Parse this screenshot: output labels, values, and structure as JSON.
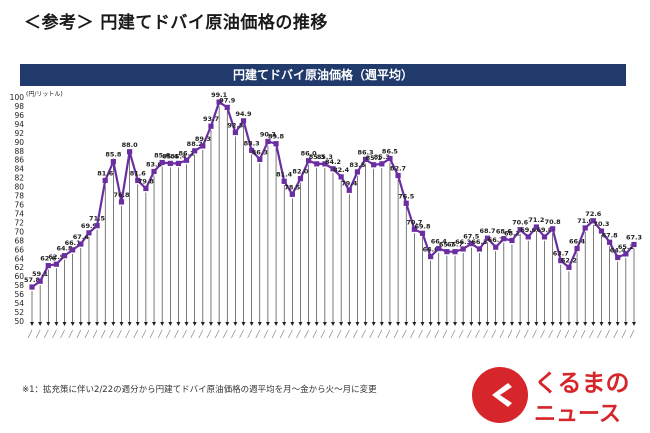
{
  "page": {
    "title": "＜参考＞ 円建てドバイ原油価格の推移",
    "footnote": "※1：拡充策に伴い2/22の週分から円建てドバイ原油価格の週平均を月～金から火～月に変更",
    "logo_top": "くるまの",
    "logo_bottom": "ニュース",
    "colors": {
      "banner": "#1f3a6b",
      "series": "#6a2ea0",
      "arrow": "#222222",
      "logo": "#d7262b"
    }
  },
  "chart_data": {
    "type": "line",
    "title": "円建てドバイ原油価格（週平均）",
    "ylabel": "(円/リットル)",
    "ylim": [
      50,
      100
    ],
    "y_ticks": [
      50,
      52,
      54,
      56,
      58,
      60,
      62,
      64,
      66,
      68,
      70,
      72,
      74,
      76,
      78,
      80,
      82,
      84,
      86,
      88,
      90,
      92,
      94,
      96,
      98,
      100
    ],
    "grid": false,
    "series": [
      {
        "values": [
          57.8,
          59.1,
          62.6,
          62.9,
          64.8,
          66.1,
          67.4,
          69.9,
          71.5,
          81.6,
          85.8,
          76.8,
          88.0,
          81.6,
          79.8,
          83.6,
          85.6,
          85.4,
          85.4,
          86.1,
          88.2,
          89.3,
          93.7,
          99.1,
          97.9,
          92.3,
          94.9,
          88.3,
          86.3,
          90.3,
          89.8,
          81.4,
          78.5,
          82.0,
          86.0,
          85.3,
          85.3,
          84.2,
          82.4,
          79.4,
          83.5,
          86.3,
          85.1,
          85.3,
          86.5,
          82.7,
          76.5,
          70.7,
          69.8,
          64.6,
          66.4,
          65.7,
          65.7,
          66.3,
          67.5,
          66.3,
          68.7,
          66.7,
          68.6,
          68.2,
          70.6,
          69.0,
          71.2,
          69.0,
          70.8,
          63.7,
          62.2,
          66.4,
          71.0,
          72.6,
          70.3,
          67.8,
          64.4,
          65.2,
          67.3
        ],
        "labels": [
          "57.8",
          "59.1",
          "62.6",
          "62.9",
          "64.8",
          "66.1",
          "67.4",
          "69.9",
          "71.5",
          "81.6",
          "85.8",
          "76.8",
          "88.0",
          "81.6",
          "79.8",
          "83.6",
          "85.6",
          "85.4",
          "85.4",
          "86.1",
          "88.2",
          "89.3",
          "93.7",
          "99.1",
          "97.9",
          "92.3",
          "94.9",
          "88.3",
          "86.3",
          "90.3",
          "89.8",
          "81.4",
          "78.5",
          "82.0",
          "86.0",
          "85.3",
          "85.3",
          "84.2",
          "82.4",
          "79.4",
          "83.5",
          "86.3",
          "85.1",
          "85.3",
          "86.5",
          "82.7",
          "76.5",
          "70.7",
          "69.8",
          "64.6",
          "66.4",
          "65.7",
          "65.7",
          "66.3",
          "67.5",
          "66.3",
          "68.7",
          "66.7",
          "68.6",
          "68.2",
          "70.6",
          "69.0",
          "71.2",
          "69.0",
          "70.8",
          "63.7",
          "62.2",
          "66.4",
          "71.0",
          "72.6",
          "70.3",
          "67.8",
          "64.4",
          "65.2",
          "67.3"
        ]
      }
    ]
  }
}
